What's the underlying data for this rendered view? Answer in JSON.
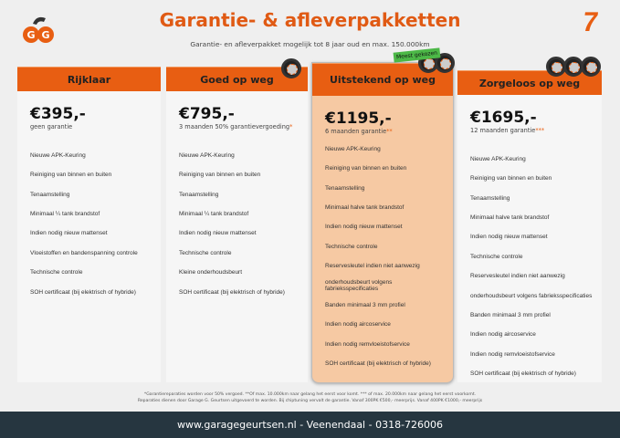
{
  "header": {
    "title": "Garantie- & afleverpakketten",
    "subtitle": "Garantie- en afleverpakket mogelijk tot 8 jaar oud en max. 150.000km",
    "logo_text": "GG",
    "corner_mark": "7"
  },
  "badge": "Meest gekozen",
  "packages": [
    {
      "name": "Rijklaar",
      "price": "€395,-",
      "desc": "geen garantie",
      "stars": "",
      "features": [
        "Nieuwe APK-Keuring",
        "Reiniging van binnen en buiten",
        "Tenaamstelling",
        "Minimaal ¼  tank brandstof",
        "Indien nodig nieuw mattenset",
        "Vloeistoffen en bandenspanning controle",
        "Technische controle",
        "SOH certificaat (bij elektrisch of hybride)"
      ]
    },
    {
      "name": "Goed op weg",
      "price": "€795,-",
      "desc": "3 maanden 50% garantievergoeding",
      "stars": "*",
      "features": [
        "Nieuwe APK-Keuring",
        "Reiniging van binnen en buiten",
        "Tenaamstelling",
        "Minimaal ¼ tank brandstof",
        "Indien nodig nieuw mattenset",
        "Technische controle",
        "Kleine onderhoudsbeurt",
        "SOH certificaat (bij elektrisch of hybride)"
      ]
    },
    {
      "name": "Uitstekend op weg",
      "price": "€1195,-",
      "desc": "6 maanden garantie",
      "stars": "**",
      "features": [
        "Nieuwe APK-Keuring",
        "Reiniging van binnen en buiten",
        "Tenaamstelling",
        "Minimaal halve tank brandstof",
        "Indien nodig nieuw mattenset",
        "Technische controle",
        "Reservesleutel indien niet aanwezig",
        "onderhoudsbeurt volgens fabrieksspecificaties",
        "Banden minimaal 3 mm profiel",
        "Indien nodig aircoservice",
        "Indien nodig remvloeistofservice",
        "SOH certificaat (bij elektrisch of hybride)"
      ]
    },
    {
      "name": "Zorgeloos op weg",
      "price": "€1695,-",
      "desc": "12 maanden garantie",
      "stars": "***",
      "features": [
        "Nieuwe APK-Keuring",
        "Reiniging van binnen en buiten",
        "Tenaamstelling",
        "Minimaal halve tank brandstof",
        "Indien nodig nieuw mattenset",
        "Technische controle",
        "Reservesleutel indien niet aanwezig",
        "onderhoudsbeurt volgens fabrieksspecificaties",
        "Banden minimaal 3 mm profiel",
        "Indien nodig aircoservice",
        "Indien nodig remvloeistofservice",
        "SOH certificaat (bij elektrisch of hybride)"
      ]
    }
  ],
  "notes": {
    "line1": "*Garantiereparaties worden voor 50% vergoed. **Of max. 10.000km naar gelang het eerst voor komt. *** of max. 20.000km naar gelang het eerst voorkomt.",
    "line2": "Reparaties dienen door Garage G. Geurtsen uitgevoerd te worden. Bij chiptuning vervalt de garantie. Vanaf 300PK €500,- meerprijs. Vanaf 400PK €1000,- meerprijs"
  },
  "footer": "www.garagegeurtsen.nl - Veenendaal - 0318-726006",
  "colors": {
    "accent": "#e85e12",
    "highlight": "#f6c9a3",
    "footer": "#263640",
    "badge": "#4cb847"
  }
}
